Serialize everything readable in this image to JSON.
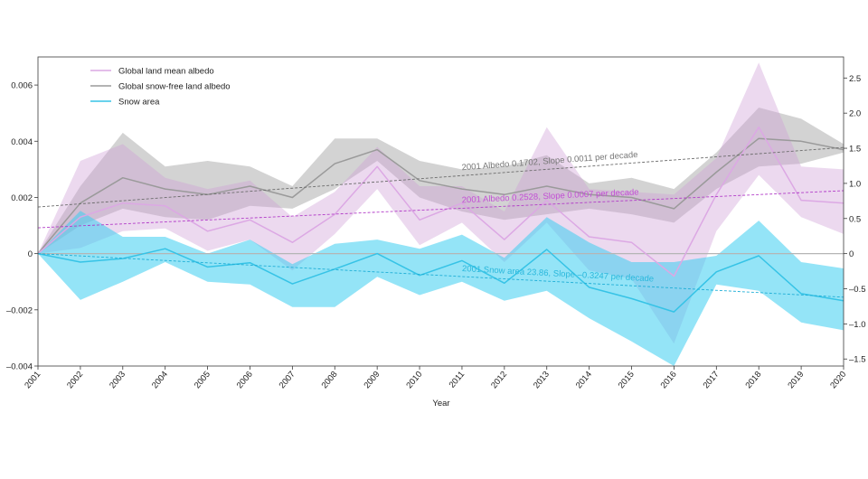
{
  "chart_data": {
    "type": "line",
    "xlabel": "Year",
    "x": [
      2001,
      2002,
      2003,
      2004,
      2005,
      2006,
      2007,
      2008,
      2009,
      2010,
      2011,
      2012,
      2013,
      2014,
      2015,
      2016,
      2017,
      2018,
      2019,
      2020
    ],
    "ylim": [
      -0.004,
      0.007
    ],
    "y2lim": [
      -1.6,
      2.8
    ],
    "yticks": [
      {
        "value": 0.006,
        "label": "0.006"
      },
      {
        "value": 0.004,
        "label": "0.004"
      },
      {
        "value": 0.002,
        "label": "0.002"
      },
      {
        "value": 0,
        "label": "0"
      },
      {
        "value": -0.002,
        "label": "–0.002"
      },
      {
        "value": -0.004,
        "label": "–0.004"
      }
    ],
    "y2ticks": [
      {
        "value": 2.5,
        "label": "2.5"
      },
      {
        "value": 2.0,
        "label": "2.0"
      },
      {
        "value": 1.5,
        "label": "1.5"
      },
      {
        "value": 1.0,
        "label": "1.0"
      },
      {
        "value": 0.5,
        "label": "0.5"
      },
      {
        "value": 0,
        "label": "0"
      },
      {
        "value": -0.5,
        "label": "–0.5"
      },
      {
        "value": -1.0,
        "label": "–1.0"
      },
      {
        "value": -1.5,
        "label": "–1.5"
      }
    ],
    "grid": false,
    "legend": {
      "placement": "top-left"
    },
    "series": [
      {
        "name": "Global land mean albedo",
        "secondary_y": false,
        "color": "#dca8e4",
        "band_color": "#cf9fd8",
        "values": [
          0,
          0.0013,
          0.0018,
          0.0017,
          0.0008,
          0.0012,
          0.0004,
          0.0014,
          0.0031,
          0.0012,
          0.0018,
          0.0005,
          0.0019,
          0.0006,
          0.0004,
          -0.0008,
          0.0021,
          0.0045,
          0.0019,
          0.0018
        ],
        "band_lower": [
          0,
          0.0002,
          0.0008,
          0.0009,
          0.0001,
          0.0005,
          -0.0006,
          0.0007,
          0.0023,
          0.0003,
          0.0011,
          -0.0003,
          0.0011,
          -0.0006,
          -0.0009,
          -0.0032,
          0.0008,
          0.0028,
          0.0013,
          0.0007
        ],
        "band_upper": [
          0,
          0.0033,
          0.0039,
          0.0027,
          0.0023,
          0.0026,
          0.0013,
          0.0022,
          0.0038,
          0.0024,
          0.0024,
          0.0015,
          0.0045,
          0.0023,
          0.0022,
          0.0021,
          0.0034,
          0.0068,
          0.0031,
          0.003
        ]
      },
      {
        "name": "Global snow-free land albedo",
        "secondary_y": false,
        "color": "#9a9a9a",
        "band_color": "#9e9e9e",
        "values": [
          0,
          0.0018,
          0.0027,
          0.0023,
          0.0021,
          0.0024,
          0.002,
          0.0032,
          0.0037,
          0.0026,
          0.0023,
          0.0021,
          0.0024,
          0.0021,
          0.002,
          0.0016,
          0.0029,
          0.0041,
          0.004,
          0.0037
        ],
        "band_lower": [
          0,
          0.001,
          0.0016,
          0.0013,
          0.0012,
          0.0017,
          0.0016,
          0.0023,
          0.0033,
          0.002,
          0.0015,
          0.0012,
          0.0014,
          0.0016,
          0.0014,
          0.0011,
          0.0023,
          0.0031,
          0.0032,
          0.0036
        ],
        "band_upper": [
          0,
          0.0024,
          0.0043,
          0.0031,
          0.0033,
          0.0031,
          0.0024,
          0.0041,
          0.0041,
          0.0033,
          0.003,
          0.0031,
          0.0035,
          0.0025,
          0.0027,
          0.0023,
          0.0036,
          0.0052,
          0.0048,
          0.0039
        ]
      },
      {
        "name": "Snow area",
        "secondary_y": true,
        "color": "#36c3e6",
        "band_color": "#3ccdf0",
        "values": [
          0,
          -0.12,
          -0.07,
          0.07,
          -0.19,
          -0.13,
          -0.43,
          -0.22,
          0,
          -0.31,
          -0.1,
          -0.42,
          0.06,
          -0.48,
          -0.64,
          -0.83,
          -0.26,
          -0.03,
          -0.57,
          -0.67
        ],
        "band_lower": [
          0,
          -0.66,
          -0.4,
          -0.12,
          -0.4,
          -0.44,
          -0.76,
          -0.76,
          -0.33,
          -0.59,
          -0.4,
          -0.67,
          -0.53,
          -0.92,
          -1.25,
          -1.6,
          -0.44,
          -0.53,
          -0.98,
          -1.09
        ],
        "band_upper": [
          0,
          0.61,
          0.24,
          0.24,
          0,
          0.2,
          -0.15,
          0.14,
          0.2,
          0.07,
          0.27,
          -0.06,
          0.52,
          0.16,
          -0.12,
          -0.12,
          -0.03,
          0.47,
          -0.12,
          -0.21
        ]
      }
    ],
    "trend_lines": [
      {
        "series_index": 1,
        "secondary_y": false,
        "x": [
          2001,
          2020
        ],
        "y": [
          0.00166,
          0.00378
        ],
        "color": "#6b6b6b",
        "label_color": "#777777",
        "label": "2001 Albedo 0.1702, Slope 0.0011 per decade"
      },
      {
        "series_index": 0,
        "secondary_y": false,
        "x": [
          2001,
          2020
        ],
        "y": [
          0.00092,
          0.00224
        ],
        "color": "#b23cc8",
        "label_color": "#c24fd4",
        "label": "2001 Albedo 0.2528, Slope 0.0007 per decade"
      },
      {
        "series_index": 2,
        "secondary_y": true,
        "x": [
          2001,
          2020
        ],
        "y": [
          0,
          -0.62
        ],
        "color": "#1eaed6",
        "label_color": "#2ab8dc",
        "label": "2001 Snow area 23.86, Slope –0.3247 per decade"
      }
    ],
    "reference_line": {
      "y": 0,
      "color": "#b5b5b5"
    }
  }
}
